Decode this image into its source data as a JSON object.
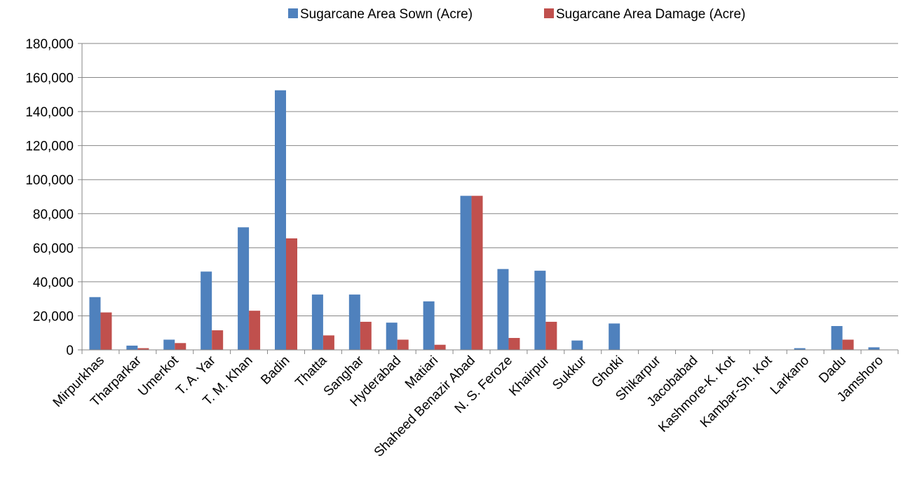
{
  "chart_data": {
    "type": "bar",
    "categories": [
      "Mirpurkhas",
      "Tharparkar",
      "Umerkot",
      "T. A. Yar",
      "T. M. Khan",
      "Badin",
      "Thatta",
      "Sanghar",
      "Hyderabad",
      "Matiari",
      "Shaheed Benazir Abad",
      "N. S. Feroze",
      "Khairpur",
      "Sukkur",
      "Ghotki",
      "Shikarpur",
      "Jacobabad",
      "Kashmore-K. Kot",
      "Kambar-Sh. Kot",
      "Larkano",
      "Dadu",
      "Jamshoro"
    ],
    "series": [
      {
        "name": "Sugarcane Area Sown (Acre)",
        "color": "#4F81BD",
        "values": [
          31000,
          2500,
          6000,
          46000,
          72000,
          152500,
          32500,
          32500,
          16000,
          28500,
          90500,
          47500,
          46500,
          5500,
          15500,
          0,
          0,
          0,
          200,
          1000,
          14000,
          1500
        ]
      },
      {
        "name": "Sugarcane Area Damage (Acre)",
        "color": "#C0504D",
        "values": [
          22000,
          1000,
          4000,
          11500,
          23000,
          65500,
          8500,
          16500,
          6000,
          3000,
          90500,
          7000,
          16500,
          0,
          0,
          0,
          0,
          0,
          0,
          0,
          6000,
          0
        ]
      }
    ],
    "y_ticks": [
      "0",
      "20,000",
      "40,000",
      "60,000",
      "80,000",
      "100,000",
      "120,000",
      "140,000",
      "160,000",
      "180,000"
    ],
    "ylim": [
      0,
      180000
    ],
    "grid": true,
    "legend_position": "top"
  }
}
